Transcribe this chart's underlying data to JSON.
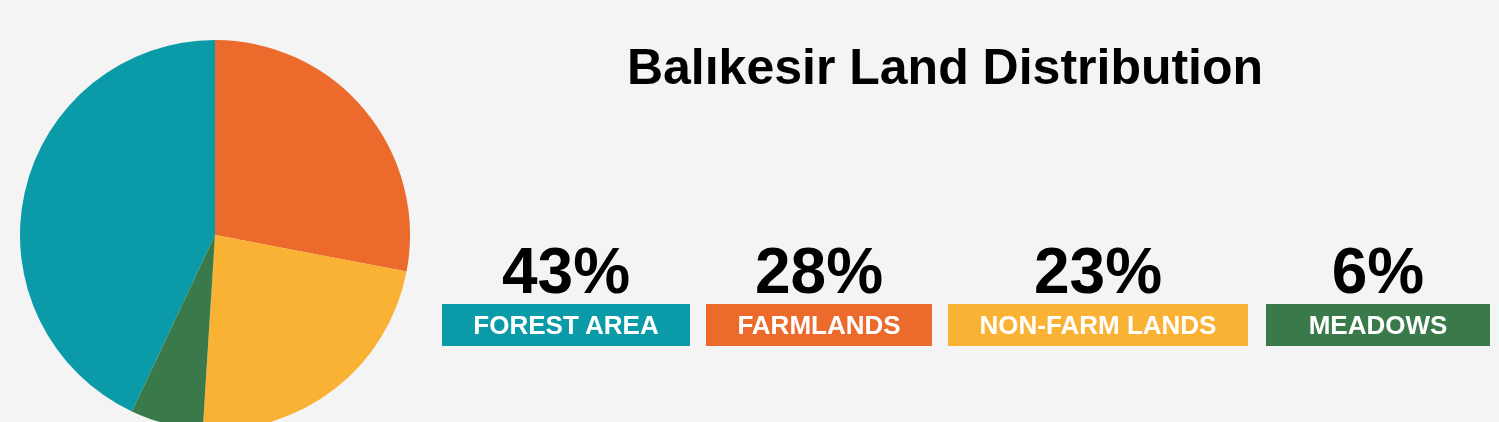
{
  "chart_data": {
    "type": "pie",
    "title": "Balıkesir Land Distribution",
    "categories": [
      "FOREST AREA",
      "FARMLANDS",
      "NON-FARM LANDS",
      "MEADOWS"
    ],
    "values": [
      43,
      28,
      23,
      6
    ],
    "colors": [
      "#0a9aa8",
      "#ec6a2c",
      "#f9b233",
      "#3a7a4a"
    ],
    "value_labels": [
      "43%",
      "28%",
      "23%",
      "6%"
    ],
    "legend": "right"
  }
}
